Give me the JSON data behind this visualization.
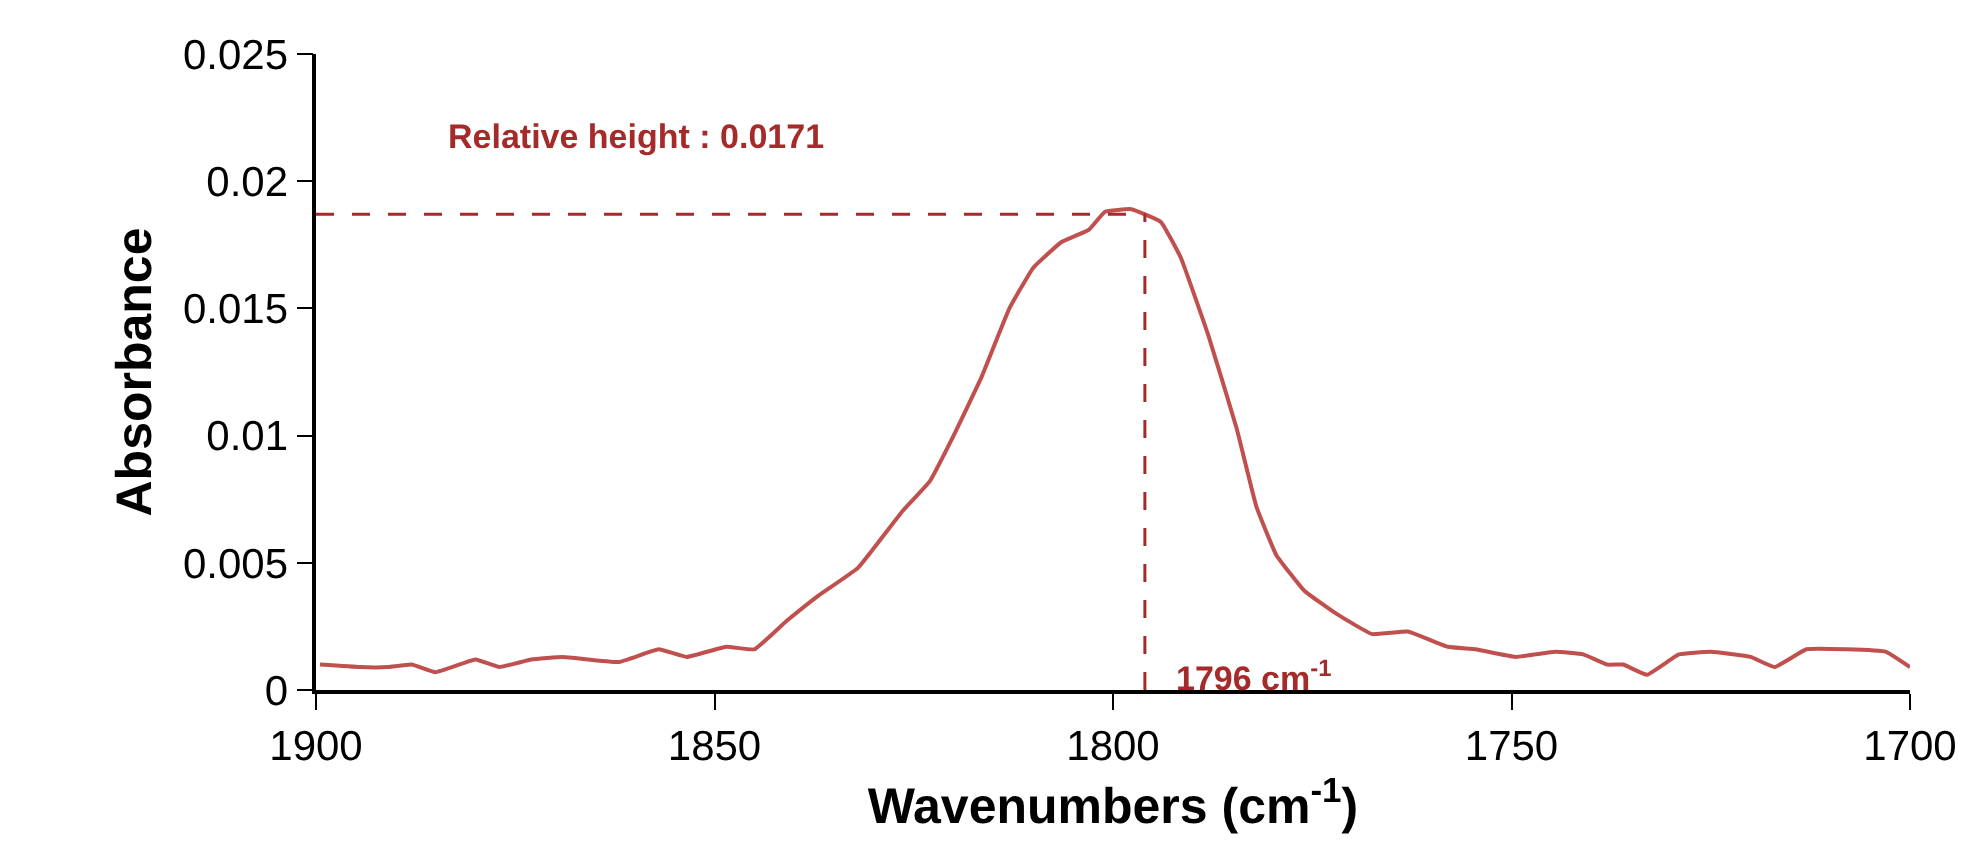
{
  "chart_data": {
    "type": "line",
    "xlabel": "Wavenumbers (cm$^{-1}$)",
    "ylabel": "Absorbance",
    "xlim": [
      1900,
      1700
    ],
    "xticks": [
      1900,
      1850,
      1800,
      1750,
      1700
    ],
    "ylim": [
      0,
      0.025
    ],
    "yticks": [
      0,
      0.005,
      0.01,
      0.015,
      0.02,
      0.025
    ],
    "line_style": "solid",
    "marker": "none",
    "series": [
      {
        "color": "#c0504d",
        "x": [
          1899.5,
          1894.5,
          1891,
          1888,
          1885,
          1880,
          1877,
          1873,
          1869,
          1862,
          1857,
          1853.5,
          1848.5,
          1845,
          1841,
          1837,
          1832,
          1826.5,
          1823,
          1820,
          1816.5,
          1813,
          1810,
          1806.5,
          1803,
          1801,
          1797.7,
          1794,
          1791.5,
          1788,
          1784.5,
          1782,
          1779.5,
          1776,
          1772,
          1767.5,
          1763,
          1758,
          1754.5,
          1749.5,
          1744.5,
          1741,
          1738,
          1736,
          1733,
          1729,
          1725,
          1720,
          1717,
          1713,
          1708,
          1703,
          1700
        ],
        "values": [
          0.001,
          0.0009,
          0.0009,
          0.001,
          0.0007,
          0.0012,
          0.0009,
          0.0012,
          0.0013,
          0.0011,
          0.0016,
          0.0013,
          0.0017,
          0.0016,
          0.0027,
          0.0037,
          0.0048,
          0.007,
          0.0082,
          0.01,
          0.0123,
          0.015,
          0.0166,
          0.0176,
          0.0181,
          0.0188,
          0.0189,
          0.0184,
          0.017,
          0.0139,
          0.0103,
          0.0072,
          0.0053,
          0.0039,
          0.003,
          0.0022,
          0.0023,
          0.0017,
          0.0016,
          0.0013,
          0.0015,
          0.0014,
          0.001,
          0.001,
          0.0006,
          0.0014,
          0.0015,
          0.0013,
          0.0009,
          0.0016,
          0.0016,
          0.0015,
          0.0009
        ]
      }
    ],
    "ref_lines": [
      {
        "axis": "x",
        "value": 1796,
        "color": "#a52a2a",
        "line_style": "dashed",
        "label": "1796 cm$^{-1}$"
      },
      {
        "axis": "y",
        "value": 0.0187,
        "color": "#a52a2a",
        "line_style": "dashed"
      }
    ],
    "annotations": [
      "Relative height : 0.0171"
    ]
  }
}
